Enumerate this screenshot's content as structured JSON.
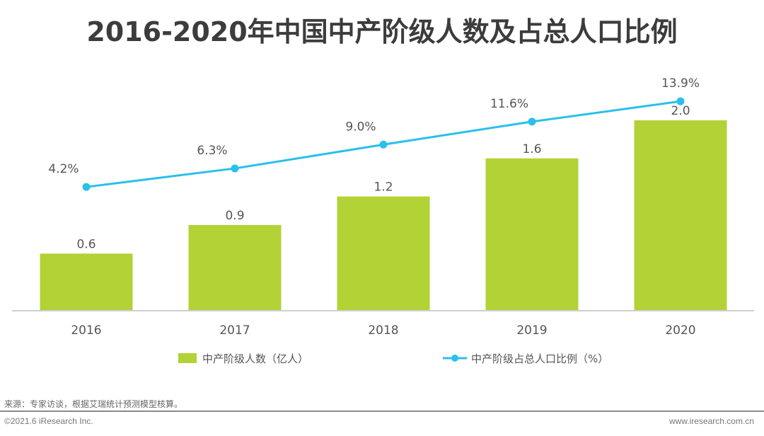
{
  "title": "2016-2020年中国中产阶级人数及占总人口比例",
  "chart_data": {
    "type": "bar",
    "title": "2016-2020年中国中产阶级人数及占总人口比例",
    "categories": [
      "2016",
      "2017",
      "2018",
      "2019",
      "2020"
    ],
    "series": [
      {
        "name": "中产阶级人数（亿人）",
        "type": "bar",
        "color": "#b2d235",
        "values": [
          0.6,
          0.9,
          1.2,
          1.6,
          2.0
        ],
        "labels": [
          "0.6",
          "0.9",
          "1.2",
          "1.6",
          "2.0"
        ]
      },
      {
        "name": "中产阶级占总人口比例（%）",
        "type": "line",
        "color": "#29c0ec",
        "values": [
          4.2,
          6.3,
          9.0,
          11.6,
          13.9
        ],
        "labels": [
          "4.2%",
          "6.3%",
          "9.0%",
          "11.6%",
          "13.9%"
        ]
      }
    ],
    "xlabel": "",
    "ylabel": "",
    "bar_ylim": [
      0,
      2.0
    ],
    "grid": false,
    "legend_position": "bottom"
  },
  "footer": {
    "source": "来源：专家访谈，根据艾瑞统计预测模型核算。",
    "copyright": "©2021.6 iResearch Inc.",
    "website": "www.iresearch.com.cn"
  }
}
